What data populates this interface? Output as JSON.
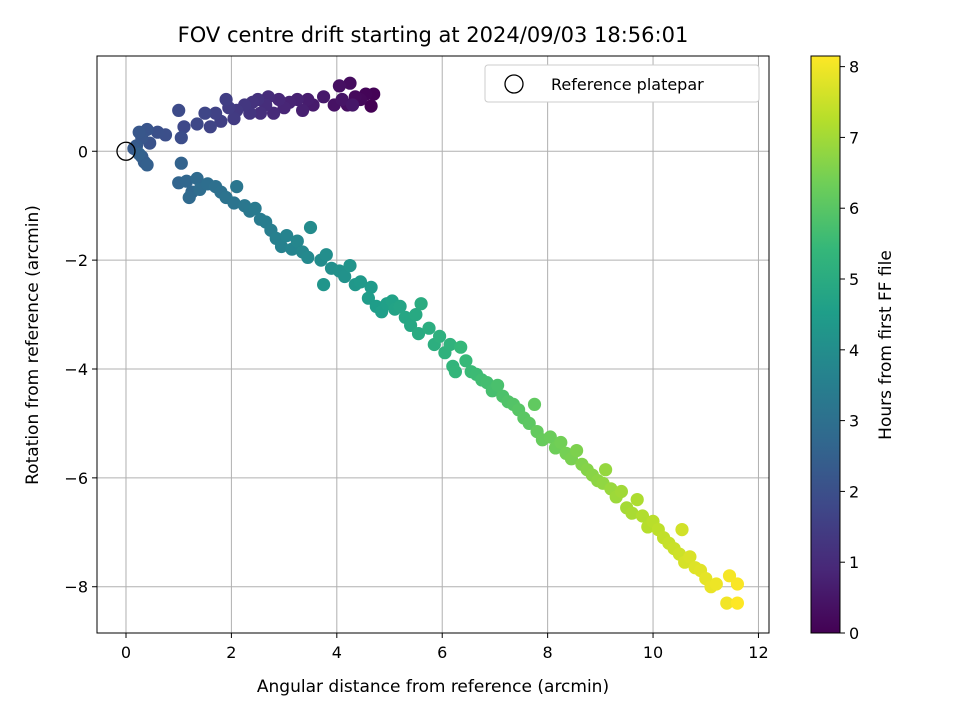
{
  "chart_data": {
    "type": "scatter",
    "title": "FOV centre drift starting at 2024/09/03 18:56:01",
    "xlabel": "Angular distance from reference (arcmin)",
    "ylabel": "Rotation from reference (arcmin)",
    "colorbar_label": "Hours from first FF file",
    "xlim": [
      -0.55,
      12.2
    ],
    "ylim": [
      -8.85,
      1.75
    ],
    "clim": [
      0,
      8.15
    ],
    "x_ticks": [
      0,
      2,
      4,
      6,
      8,
      10,
      12
    ],
    "y_ticks": [
      -8,
      -6,
      -4,
      -2,
      0
    ],
    "colorbar_ticks": [
      0,
      1,
      2,
      3,
      4,
      5,
      6,
      7,
      8
    ],
    "grid": true,
    "legend": {
      "position": "top-right",
      "entries": [
        "Reference platepar"
      ]
    },
    "colormap": "viridis",
    "colormap_stops": [
      "#440154",
      "#482878",
      "#3e4989",
      "#31688e",
      "#26828e",
      "#1f9e89",
      "#35b779",
      "#6ece58",
      "#b5de2b",
      "#fde725"
    ],
    "reference_point": {
      "x": 0,
      "y": 0
    },
    "series": [
      {
        "points": [
          [
            4.65,
            0.83
          ],
          [
            4.7,
            1.05
          ],
          [
            4.55,
            1.05
          ],
          [
            4.45,
            0.95
          ],
          [
            4.35,
            1.0
          ],
          [
            4.25,
            1.25
          ],
          [
            4.2,
            0.85
          ],
          [
            4.05,
            1.2
          ],
          [
            3.95,
            0.85
          ],
          [
            4.1,
            0.95
          ],
          [
            4.3,
            0.85
          ],
          [
            3.75,
            1.0
          ],
          [
            3.55,
            0.85
          ],
          [
            3.45,
            0.95
          ],
          [
            3.35,
            0.75
          ],
          [
            3.25,
            0.95
          ],
          [
            3.1,
            0.9
          ],
          [
            3.0,
            0.8
          ],
          [
            2.9,
            0.95
          ],
          [
            2.8,
            0.7
          ],
          [
            2.7,
            1.0
          ],
          [
            2.65,
            0.85
          ],
          [
            2.55,
            0.7
          ],
          [
            2.5,
            0.95
          ],
          [
            2.4,
            0.9
          ],
          [
            2.35,
            0.7
          ],
          [
            2.25,
            0.85
          ],
          [
            2.1,
            0.75
          ],
          [
            2.05,
            0.6
          ],
          [
            1.95,
            0.8
          ],
          [
            1.9,
            0.95
          ],
          [
            1.8,
            0.55
          ],
          [
            1.7,
            0.7
          ],
          [
            1.6,
            0.45
          ],
          [
            1.5,
            0.7
          ],
          [
            1.35,
            0.5
          ],
          [
            1.1,
            0.45
          ],
          [
            1.0,
            0.75
          ],
          [
            1.05,
            0.25
          ],
          [
            0.75,
            0.3
          ],
          [
            0.6,
            0.35
          ],
          [
            0.45,
            0.15
          ],
          [
            0.4,
            0.4
          ],
          [
            0.3,
            0.25
          ],
          [
            0.25,
            0.35
          ],
          [
            0.2,
            0.1
          ],
          [
            0.15,
            0.05
          ],
          [
            0.3,
            -0.1
          ],
          [
            0.35,
            -0.2
          ],
          [
            0.4,
            -0.25
          ],
          [
            0.25,
            -0.05
          ],
          [
            1.05,
            -0.22
          ],
          [
            1.0,
            -0.58
          ],
          [
            1.15,
            -0.55
          ],
          [
            1.25,
            -0.75
          ],
          [
            1.2,
            -0.85
          ],
          [
            1.35,
            -0.5
          ],
          [
            1.4,
            -0.7
          ],
          [
            1.55,
            -0.6
          ],
          [
            1.7,
            -0.65
          ],
          [
            1.8,
            -0.75
          ],
          [
            1.9,
            -0.85
          ],
          [
            2.05,
            -0.95
          ],
          [
            2.1,
            -0.65
          ],
          [
            2.25,
            -1.0
          ],
          [
            2.35,
            -1.1
          ],
          [
            2.45,
            -1.05
          ],
          [
            2.55,
            -1.25
          ],
          [
            2.65,
            -1.3
          ],
          [
            2.75,
            -1.45
          ],
          [
            2.85,
            -1.6
          ],
          [
            2.95,
            -1.75
          ],
          [
            3.05,
            -1.55
          ],
          [
            3.15,
            -1.8
          ],
          [
            3.25,
            -1.65
          ],
          [
            3.35,
            -1.85
          ],
          [
            3.45,
            -1.95
          ],
          [
            3.5,
            -1.4
          ],
          [
            3.7,
            -2.0
          ],
          [
            3.8,
            -1.9
          ],
          [
            3.9,
            -2.15
          ],
          [
            4.05,
            -2.2
          ],
          [
            4.15,
            -2.3
          ],
          [
            4.25,
            -2.1
          ],
          [
            3.75,
            -2.45
          ],
          [
            4.35,
            -2.45
          ],
          [
            4.45,
            -2.4
          ],
          [
            4.65,
            -2.5
          ],
          [
            4.6,
            -2.7
          ],
          [
            4.75,
            -2.85
          ],
          [
            4.85,
            -2.95
          ],
          [
            4.95,
            -2.8
          ],
          [
            5.05,
            -2.75
          ],
          [
            5.1,
            -2.9
          ],
          [
            5.2,
            -2.85
          ],
          [
            5.3,
            -3.05
          ],
          [
            5.4,
            -3.2
          ],
          [
            5.5,
            -3.0
          ],
          [
            5.55,
            -3.35
          ],
          [
            5.6,
            -2.8
          ],
          [
            5.75,
            -3.25
          ],
          [
            5.85,
            -3.55
          ],
          [
            5.95,
            -3.4
          ],
          [
            6.05,
            -3.7
          ],
          [
            6.15,
            -3.55
          ],
          [
            6.2,
            -3.95
          ],
          [
            6.25,
            -4.05
          ],
          [
            6.35,
            -3.6
          ],
          [
            6.45,
            -3.85
          ],
          [
            6.55,
            -4.05
          ],
          [
            6.65,
            -4.1
          ],
          [
            6.75,
            -4.2
          ],
          [
            6.85,
            -4.25
          ],
          [
            6.95,
            -4.4
          ],
          [
            7.05,
            -4.3
          ],
          [
            7.15,
            -4.5
          ],
          [
            7.25,
            -4.6
          ],
          [
            7.35,
            -4.65
          ],
          [
            7.45,
            -4.75
          ],
          [
            7.55,
            -4.9
          ],
          [
            7.65,
            -5.0
          ],
          [
            7.75,
            -4.65
          ],
          [
            7.8,
            -5.15
          ],
          [
            7.9,
            -5.3
          ],
          [
            8.05,
            -5.25
          ],
          [
            8.15,
            -5.45
          ],
          [
            8.25,
            -5.35
          ],
          [
            8.35,
            -5.55
          ],
          [
            8.45,
            -5.65
          ],
          [
            8.55,
            -5.5
          ],
          [
            8.65,
            -5.75
          ],
          [
            8.75,
            -5.85
          ],
          [
            8.85,
            -5.95
          ],
          [
            8.95,
            -6.05
          ],
          [
            9.05,
            -6.1
          ],
          [
            9.1,
            -5.85
          ],
          [
            9.2,
            -6.2
          ],
          [
            9.3,
            -6.35
          ],
          [
            9.4,
            -6.25
          ],
          [
            9.5,
            -6.55
          ],
          [
            9.6,
            -6.65
          ],
          [
            9.7,
            -6.4
          ],
          [
            9.8,
            -6.7
          ],
          [
            9.9,
            -6.9
          ],
          [
            10.0,
            -6.8
          ],
          [
            10.1,
            -6.95
          ],
          [
            10.2,
            -7.1
          ],
          [
            10.3,
            -7.2
          ],
          [
            10.4,
            -7.3
          ],
          [
            10.5,
            -7.4
          ],
          [
            10.55,
            -6.95
          ],
          [
            10.6,
            -7.55
          ],
          [
            10.7,
            -7.45
          ],
          [
            10.8,
            -7.65
          ],
          [
            10.9,
            -7.7
          ],
          [
            11.0,
            -7.85
          ],
          [
            11.1,
            -8.0
          ],
          [
            11.2,
            -7.95
          ],
          [
            11.4,
            -8.3
          ],
          [
            11.45,
            -7.8
          ],
          [
            11.6,
            -7.95
          ],
          [
            11.6,
            -8.3
          ]
        ]
      }
    ]
  }
}
